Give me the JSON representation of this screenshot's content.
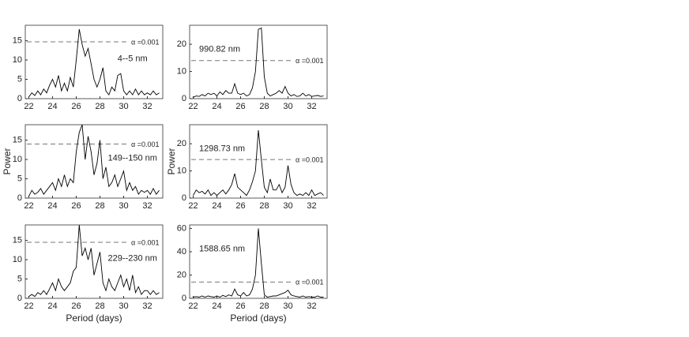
{
  "chart_data": [
    {
      "type": "line",
      "annotation": "4--5 nm",
      "threshold": 14.7,
      "threshold_label": "α =0.001",
      "color": "#000000",
      "x": [
        22,
        22.25,
        22.5,
        22.75,
        23,
        23.25,
        23.5,
        23.75,
        24,
        24.25,
        24.5,
        24.75,
        25,
        25.25,
        25.5,
        25.75,
        26,
        26.25,
        26.5,
        26.75,
        27,
        27.25,
        27.5,
        27.75,
        28,
        28.25,
        28.5,
        28.75,
        29,
        29.25,
        29.5,
        29.75,
        30,
        30.25,
        30.5,
        30.75,
        31,
        31.25,
        31.5,
        31.75,
        32,
        32.25,
        32.5,
        32.75,
        33
      ],
      "values": [
        0.5,
        1.5,
        0.8,
        2,
        1,
        2.5,
        1.5,
        3.5,
        5,
        3,
        6,
        2,
        4,
        2,
        5.5,
        3,
        10,
        18,
        14,
        11,
        13,
        9,
        5,
        3,
        5,
        8,
        2,
        1,
        3,
        2,
        6,
        6.5,
        2,
        1,
        2,
        1,
        2.5,
        1,
        2,
        1,
        1.5,
        1,
        2,
        1,
        1.5
      ],
      "xlim": [
        21.7,
        33.3
      ],
      "xticks": [
        22,
        24,
        26,
        28,
        30,
        32
      ],
      "ylim": [
        0,
        19
      ],
      "yticks": [
        0,
        5,
        10,
        15
      ]
    },
    {
      "type": "line",
      "annotation": "990.82 nm",
      "threshold": 14,
      "threshold_label": "α =0.001",
      "color": "#000000",
      "x": [
        22,
        22.25,
        22.5,
        22.75,
        23,
        23.25,
        23.5,
        23.75,
        24,
        24.25,
        24.5,
        24.75,
        25,
        25.25,
        25.5,
        25.75,
        26,
        26.25,
        26.5,
        26.75,
        27,
        27.25,
        27.5,
        27.75,
        28,
        28.25,
        28.5,
        28.75,
        29,
        29.25,
        29.5,
        29.75,
        30,
        30.25,
        30.5,
        30.75,
        31,
        31.25,
        31.5,
        31.75,
        32,
        32.25,
        32.5,
        32.75,
        33
      ],
      "values": [
        0.5,
        1,
        0.8,
        1.5,
        1,
        2,
        1.5,
        2,
        1,
        2.5,
        1.5,
        3,
        2,
        2,
        5.5,
        2,
        1.5,
        2,
        1,
        1.5,
        4,
        10,
        25.5,
        26,
        8,
        2,
        1,
        1.5,
        2,
        3,
        2,
        4.5,
        2,
        1,
        1.5,
        0.8,
        1,
        2,
        1,
        1.5,
        0.8,
        1,
        1.2,
        0.8,
        1
      ],
      "xlim": [
        21.7,
        33.3
      ],
      "xticks": [
        22,
        24,
        26,
        28,
        30,
        32
      ],
      "ylim": [
        0,
        27
      ],
      "yticks": [
        0,
        10,
        20
      ]
    },
    {
      "type": "line",
      "annotation": "149--150 nm",
      "threshold": 14,
      "threshold_label": "α =0.001",
      "color": "#000000",
      "ylabel": "Power",
      "x": [
        22,
        22.25,
        22.5,
        22.75,
        23,
        23.25,
        23.5,
        23.75,
        24,
        24.25,
        24.5,
        24.75,
        25,
        25.25,
        25.5,
        25.75,
        26,
        26.25,
        26.5,
        26.75,
        27,
        27.25,
        27.5,
        27.75,
        28,
        28.25,
        28.5,
        28.75,
        29,
        29.25,
        29.5,
        29.75,
        30,
        30.25,
        30.5,
        30.75,
        31,
        31.25,
        31.5,
        31.75,
        32,
        32.25,
        32.5,
        32.75,
        33
      ],
      "values": [
        0.5,
        2,
        1,
        1.5,
        2.5,
        1,
        2,
        3,
        4,
        2,
        5,
        3,
        6,
        3,
        5,
        4,
        12,
        17,
        19,
        10,
        16,
        12,
        6,
        9,
        15,
        5,
        8,
        3,
        4,
        6,
        3,
        5,
        7,
        2,
        4,
        2,
        3,
        1,
        2,
        1.5,
        2,
        1,
        2.5,
        1,
        2
      ],
      "xlim": [
        21.7,
        33.3
      ],
      "xticks": [
        22,
        24,
        26,
        28,
        30,
        32
      ],
      "ylim": [
        0,
        19
      ],
      "yticks": [
        0,
        5,
        10,
        15
      ]
    },
    {
      "type": "line",
      "annotation": "1298.73 nm",
      "threshold": 14.2,
      "threshold_label": "α =0.001",
      "color": "#000000",
      "ylabel": "Power",
      "x": [
        22,
        22.25,
        22.5,
        22.75,
        23,
        23.25,
        23.5,
        23.75,
        24,
        24.25,
        24.5,
        24.75,
        25,
        25.25,
        25.5,
        25.75,
        26,
        26.25,
        26.5,
        26.75,
        27,
        27.25,
        27.5,
        27.75,
        28,
        28.25,
        28.5,
        28.75,
        29,
        29.25,
        29.5,
        29.75,
        30,
        30.25,
        30.5,
        30.75,
        31,
        31.25,
        31.5,
        31.75,
        32,
        32.25,
        32.5,
        32.75,
        33
      ],
      "values": [
        1,
        3,
        2,
        2.5,
        1.5,
        3,
        1,
        2,
        1,
        2,
        3,
        1.5,
        3,
        5,
        9,
        4,
        3,
        2,
        1,
        3,
        6,
        10,
        25,
        14,
        4,
        2,
        7,
        3,
        3,
        5,
        2,
        4,
        12,
        5,
        2,
        1,
        1.5,
        1,
        2,
        1,
        3,
        1,
        1.5,
        2,
        1
      ],
      "xlim": [
        21.7,
        33.3
      ],
      "xticks": [
        22,
        24,
        26,
        28,
        30,
        32
      ],
      "ylim": [
        0,
        27
      ],
      "yticks": [
        0,
        10,
        20
      ]
    },
    {
      "type": "line",
      "annotation": "229--230 nm",
      "threshold": 14.5,
      "threshold_label": "α =0.001",
      "color": "#000000",
      "xlabel": "Period (days)",
      "x": [
        22,
        22.25,
        22.5,
        22.75,
        23,
        23.25,
        23.5,
        23.75,
        24,
        24.25,
        24.5,
        24.75,
        25,
        25.25,
        25.5,
        25.75,
        26,
        26.25,
        26.5,
        26.75,
        27,
        27.25,
        27.5,
        27.75,
        28,
        28.25,
        28.5,
        28.75,
        29,
        29.25,
        29.5,
        29.75,
        30,
        30.25,
        30.5,
        30.75,
        31,
        31.25,
        31.5,
        31.75,
        32,
        32.25,
        32.5,
        32.75,
        33
      ],
      "values": [
        0.5,
        1,
        0.5,
        1.5,
        1,
        2,
        1,
        2.5,
        4,
        2,
        5,
        3,
        2,
        3,
        4,
        7,
        8,
        19,
        11,
        13,
        10,
        13,
        6,
        9,
        12,
        4,
        2,
        5,
        3,
        2,
        4,
        6,
        3,
        5,
        2,
        6,
        1.5,
        3,
        1,
        2,
        2,
        1,
        2,
        1,
        1.5
      ],
      "xlim": [
        21.7,
        33.3
      ],
      "xticks": [
        22,
        24,
        26,
        28,
        30,
        32
      ],
      "ylim": [
        0,
        19
      ],
      "yticks": [
        0,
        5,
        10,
        15
      ]
    },
    {
      "type": "line",
      "annotation": "1588.65 nm",
      "threshold": 14,
      "threshold_label": "α =0.001",
      "color": "#000000",
      "xlabel": "Period (days)",
      "x": [
        22,
        22.25,
        22.5,
        22.75,
        23,
        23.25,
        23.5,
        23.75,
        24,
        24.25,
        24.5,
        24.75,
        25,
        25.25,
        25.5,
        25.75,
        26,
        26.25,
        26.5,
        26.75,
        27,
        27.25,
        27.5,
        27.75,
        28,
        28.25,
        28.5,
        28.75,
        29,
        29.25,
        29.5,
        29.75,
        30,
        30.25,
        30.5,
        30.75,
        31,
        31.25,
        31.5,
        31.75,
        32,
        32.25,
        32.5,
        32.75,
        33
      ],
      "values": [
        1,
        1.5,
        1,
        2,
        1,
        2,
        1.5,
        1,
        2,
        1,
        2.5,
        1.5,
        3,
        2,
        8,
        3,
        2,
        5,
        2,
        3,
        8,
        20,
        60,
        30,
        3,
        1,
        1.5,
        2,
        2,
        3,
        4,
        5,
        7,
        3,
        2,
        1.5,
        1,
        2,
        1,
        1.5,
        1,
        1,
        2,
        1,
        1
      ],
      "xlim": [
        21.7,
        33.3
      ],
      "xticks": [
        22,
        24,
        26,
        28,
        30,
        32
      ],
      "ylim": [
        0,
        63
      ],
      "yticks": [
        0,
        20,
        40,
        60
      ]
    }
  ]
}
